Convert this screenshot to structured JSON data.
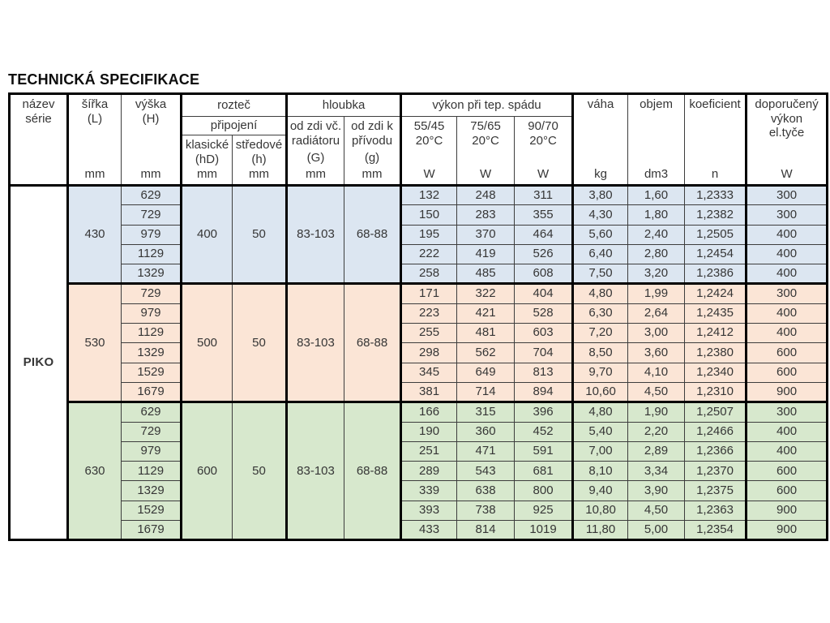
{
  "page": {
    "title": "TECHNICKÁ SPECIFIKACE"
  },
  "table": {
    "header": {
      "series": {
        "l1": "název",
        "l2": "série"
      },
      "width": {
        "label": "šířka",
        "sub": "(L)",
        "unit": "mm"
      },
      "height": {
        "label": "výška",
        "sub": "(H)",
        "unit": "mm"
      },
      "pitch_group": {
        "l1": "rozteč",
        "l2": "připojení"
      },
      "classic": {
        "label": "klasické",
        "sub": "(hD)",
        "unit": "mm"
      },
      "central": {
        "label": "středové",
        "sub": "(h)",
        "unit": "mm"
      },
      "depth_group": "hloubka",
      "depth_incl": {
        "l1": "od zdi vč.",
        "l2": "radiátoru",
        "sub": "(G)",
        "unit": "mm"
      },
      "depth_supply": {
        "l1": "od zdi k",
        "l2": "přívodu",
        "sub": "(g)",
        "unit": "mm"
      },
      "power_group": "výkon při tep. spádu",
      "power_5545": {
        "l1": "55/45",
        "l2": "20°C",
        "unit": "W"
      },
      "power_7565": {
        "l1": "75/65",
        "l2": "20°C",
        "unit": "W"
      },
      "power_9070": {
        "l1": "90/70",
        "l2": "20°C",
        "unit": "W"
      },
      "weight": {
        "label": "váha",
        "unit": "kg"
      },
      "volume": {
        "label": "objem",
        "unit": "dm3"
      },
      "coefficient": {
        "label": "koeficient",
        "unit": "n"
      },
      "recommended": {
        "l1": "doporučený",
        "l2": "výkon",
        "l3": "el.tyče",
        "unit": "W"
      }
    },
    "series_name": "PIKO",
    "groups": [
      {
        "width_mm": "430",
        "pitch_classic": "400",
        "pitch_central": "50",
        "depth_incl": "83-103",
        "depth_supply": "68-88",
        "color": "#dce6f1",
        "rows": [
          {
            "h": "629",
            "p1": "132",
            "p2": "248",
            "p3": "311",
            "kg": "3,80",
            "dm3": "1,60",
            "n": "1,2333",
            "el": "300"
          },
          {
            "h": "729",
            "p1": "150",
            "p2": "283",
            "p3": "355",
            "kg": "4,30",
            "dm3": "1,80",
            "n": "1,2382",
            "el": "300"
          },
          {
            "h": "979",
            "p1": "195",
            "p2": "370",
            "p3": "464",
            "kg": "5,60",
            "dm3": "2,40",
            "n": "1,2505",
            "el": "400"
          },
          {
            "h": "1129",
            "p1": "222",
            "p2": "419",
            "p3": "526",
            "kg": "6,40",
            "dm3": "2,80",
            "n": "1,2454",
            "el": "400"
          },
          {
            "h": "1329",
            "p1": "258",
            "p2": "485",
            "p3": "608",
            "kg": "7,50",
            "dm3": "3,20",
            "n": "1,2386",
            "el": "400"
          }
        ]
      },
      {
        "width_mm": "530",
        "pitch_classic": "500",
        "pitch_central": "50",
        "depth_incl": "83-103",
        "depth_supply": "68-88",
        "color": "#fbe5d6",
        "rows": [
          {
            "h": "729",
            "p1": "171",
            "p2": "322",
            "p3": "404",
            "kg": "4,80",
            "dm3": "1,99",
            "n": "1,2424",
            "el": "300"
          },
          {
            "h": "979",
            "p1": "223",
            "p2": "421",
            "p3": "528",
            "kg": "6,30",
            "dm3": "2,64",
            "n": "1,2435",
            "el": "400"
          },
          {
            "h": "1129",
            "p1": "255",
            "p2": "481",
            "p3": "603",
            "kg": "7,20",
            "dm3": "3,00",
            "n": "1,2412",
            "el": "400"
          },
          {
            "h": "1329",
            "p1": "298",
            "p2": "562",
            "p3": "704",
            "kg": "8,50",
            "dm3": "3,60",
            "n": "1,2380",
            "el": "600"
          },
          {
            "h": "1529",
            "p1": "345",
            "p2": "649",
            "p3": "813",
            "kg": "9,70",
            "dm3": "4,10",
            "n": "1,2340",
            "el": "600"
          },
          {
            "h": "1679",
            "p1": "381",
            "p2": "714",
            "p3": "894",
            "kg": "10,60",
            "dm3": "4,50",
            "n": "1,2310",
            "el": "900"
          }
        ]
      },
      {
        "width_mm": "630",
        "pitch_classic": "600",
        "pitch_central": "50",
        "depth_incl": "83-103",
        "depth_supply": "68-88",
        "color": "#d7e8cd",
        "rows": [
          {
            "h": "629",
            "p1": "166",
            "p2": "315",
            "p3": "396",
            "kg": "4,80",
            "dm3": "1,90",
            "n": "1,2507",
            "el": "300"
          },
          {
            "h": "729",
            "p1": "190",
            "p2": "360",
            "p3": "452",
            "kg": "5,40",
            "dm3": "2,20",
            "n": "1,2466",
            "el": "400"
          },
          {
            "h": "979",
            "p1": "251",
            "p2": "471",
            "p3": "591",
            "kg": "7,00",
            "dm3": "2,89",
            "n": "1,2366",
            "el": "400"
          },
          {
            "h": "1129",
            "p1": "289",
            "p2": "543",
            "p3": "681",
            "kg": "8,10",
            "dm3": "3,34",
            "n": "1,2370",
            "el": "600"
          },
          {
            "h": "1329",
            "p1": "339",
            "p2": "638",
            "p3": "800",
            "kg": "9,40",
            "dm3": "3,90",
            "n": "1,2375",
            "el": "600"
          },
          {
            "h": "1529",
            "p1": "393",
            "p2": "738",
            "p3": "925",
            "kg": "10,80",
            "dm3": "4,50",
            "n": "1,2363",
            "el": "900"
          },
          {
            "h": "1679",
            "p1": "433",
            "p2": "814",
            "p3": "1019",
            "kg": "11,80",
            "dm3": "5,00",
            "n": "1,2354",
            "el": "900"
          }
        ]
      }
    ]
  }
}
